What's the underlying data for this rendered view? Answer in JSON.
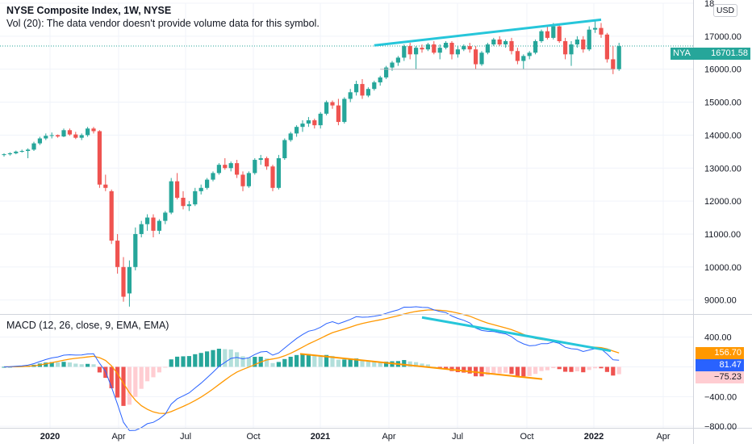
{
  "header": {
    "title": "NYSE Composite Index, 1W, NYSE",
    "volume_note": "Vol (20): The data vendor doesn't provide volume data for this symbol."
  },
  "currency_button": "USD",
  "symbol_tag": {
    "symbol": "NYA",
    "price": "16701.58",
    "color": "#26a69a"
  },
  "macd_header": "MACD (12, 26, close, 9, EMA, EMA)",
  "macd_tags": [
    {
      "label": "156.70",
      "bg": "#ff9800",
      "fg": "#ffffff"
    },
    {
      "label": "81.47",
      "bg": "#2962ff",
      "fg": "#ffffff"
    },
    {
      "label": "−75.23",
      "bg": "#ffcdd2",
      "fg": "#131722"
    }
  ],
  "colors": {
    "up": "#26a69a",
    "down": "#ef5350",
    "hist_up_strong": "#26a69a",
    "hist_up_weak": "#b2dfdb",
    "hist_down_strong": "#ef5350",
    "hist_down_weak": "#ffcdd2",
    "macd_line": "#2962ff",
    "signal_line": "#ff9800",
    "trend_cyan": "#26c6da",
    "trend_orange": "#ff9800"
  },
  "chart_data": [
    {
      "type": "candlestick",
      "title": "NYSE Composite Index, 1W, NYSE",
      "ylim": [
        8600,
        18000
      ],
      "price_ticks": [
        "9000.00",
        "10000.00",
        "11000.00",
        "12000.00",
        "13000.00",
        "14000.00",
        "15000.00",
        "16000.00",
        "17000.00",
        "18"
      ],
      "x_ticks": [
        "2020",
        "Apr",
        "Jul",
        "Oct",
        "2021",
        "Apr",
        "Jul",
        "Oct",
        "2022",
        "Apr"
      ],
      "last_price": 16701.58,
      "candles": [
        [
          13400,
          13450,
          13350,
          13420
        ],
        [
          13420,
          13480,
          13380,
          13450
        ],
        [
          13450,
          13530,
          13420,
          13500
        ],
        [
          13500,
          13560,
          13470,
          13520
        ],
        [
          13520,
          13600,
          13300,
          13560
        ],
        [
          13560,
          13800,
          13520,
          13750
        ],
        [
          13750,
          13950,
          13700,
          13900
        ],
        [
          13900,
          14050,
          13850,
          13980
        ],
        [
          13980,
          14080,
          13900,
          14000
        ],
        [
          14000,
          14020,
          13920,
          13960
        ],
        [
          13960,
          14200,
          13940,
          14150
        ],
        [
          14150,
          14200,
          13980,
          14020
        ],
        [
          14020,
          14100,
          13880,
          13920
        ],
        [
          13920,
          14050,
          13850,
          14000
        ],
        [
          14000,
          14250,
          13950,
          14200
        ],
        [
          14200,
          14250,
          14050,
          14120
        ],
        [
          14120,
          14150,
          12400,
          12500
        ],
        [
          12500,
          12800,
          12300,
          12400
        ],
        [
          12300,
          12350,
          10700,
          10800
        ],
        [
          10800,
          11000,
          9800,
          10000
        ],
        [
          10000,
          10300,
          8950,
          9100
        ],
        [
          9200,
          10200,
          8800,
          10000
        ],
        [
          10000,
          11200,
          9900,
          11000
        ],
        [
          11000,
          11400,
          10900,
          11300
        ],
        [
          11300,
          11600,
          11100,
          11500
        ],
        [
          11500,
          11600,
          10900,
          11100
        ],
        [
          11100,
          11450,
          11000,
          11400
        ],
        [
          11400,
          11700,
          11300,
          11650
        ],
        [
          11650,
          12700,
          11600,
          12600
        ],
        [
          12600,
          12850,
          12050,
          12100
        ],
        [
          12100,
          12300,
          11750,
          11850
        ],
        [
          11850,
          12000,
          11700,
          11900
        ],
        [
          11900,
          12400,
          11850,
          12300
        ],
        [
          12300,
          12500,
          12200,
          12400
        ],
        [
          12400,
          12700,
          12350,
          12650
        ],
        [
          12650,
          12900,
          12600,
          12850
        ],
        [
          12850,
          13150,
          12800,
          13100
        ],
        [
          13100,
          13300,
          12950,
          13000
        ],
        [
          13000,
          13200,
          12900,
          13150
        ],
        [
          13150,
          13250,
          12700,
          12800
        ],
        [
          12800,
          12900,
          12300,
          12450
        ],
        [
          12450,
          12900,
          12400,
          12850
        ],
        [
          12850,
          13300,
          12800,
          13250
        ],
        [
          13250,
          13400,
          13100,
          13300
        ],
        [
          13300,
          13350,
          12950,
          13050
        ],
        [
          13050,
          13100,
          12300,
          12400
        ],
        [
          12400,
          13400,
          12350,
          13300
        ],
        [
          13300,
          13900,
          13250,
          13850
        ],
        [
          13850,
          14100,
          13800,
          14050
        ],
        [
          14050,
          14300,
          13950,
          14250
        ],
        [
          14250,
          14450,
          14100,
          14350
        ],
        [
          14350,
          14550,
          14250,
          14450
        ],
        [
          14450,
          14500,
          14200,
          14300
        ],
        [
          14300,
          14700,
          14200,
          14650
        ],
        [
          14650,
          15050,
          14600,
          15000
        ],
        [
          15000,
          15050,
          14800,
          14900
        ],
        [
          14900,
          15100,
          14300,
          14400
        ],
        [
          14400,
          15150,
          14350,
          15100
        ],
        [
          15100,
          15400,
          15000,
          15300
        ],
        [
          15300,
          15650,
          15200,
          15550
        ],
        [
          15550,
          15700,
          15100,
          15200
        ],
        [
          15200,
          15450,
          15150,
          15400
        ],
        [
          15400,
          15650,
          15350,
          15600
        ],
        [
          15600,
          15800,
          15500,
          15750
        ],
        [
          15750,
          16100,
          15700,
          16050
        ],
        [
          16050,
          16250,
          15950,
          16200
        ],
        [
          16200,
          16400,
          16100,
          16350
        ],
        [
          16350,
          16750,
          16250,
          16700
        ],
        [
          16700,
          16800,
          16300,
          16450
        ],
        [
          16450,
          16700,
          16000,
          16650
        ],
        [
          16650,
          16750,
          16500,
          16600
        ],
        [
          16600,
          16800,
          16550,
          16750
        ],
        [
          16750,
          16850,
          16450,
          16500
        ],
        [
          16500,
          16750,
          16300,
          16650
        ],
        [
          16650,
          16850,
          16600,
          16800
        ],
        [
          16800,
          16850,
          16300,
          16450
        ],
        [
          16450,
          16700,
          16350,
          16600
        ],
        [
          16600,
          16750,
          16550,
          16700
        ],
        [
          16700,
          16800,
          16500,
          16600
        ],
        [
          16600,
          16700,
          16000,
          16150
        ],
        [
          16150,
          16550,
          16100,
          16500
        ],
        [
          16500,
          16800,
          16450,
          16750
        ],
        [
          16750,
          16950,
          16700,
          16900
        ],
        [
          16900,
          17000,
          16700,
          16750
        ],
        [
          16750,
          16900,
          16650,
          16850
        ],
        [
          16850,
          16950,
          16450,
          16550
        ],
        [
          16550,
          16650,
          16150,
          16250
        ],
        [
          16250,
          16450,
          16000,
          16400
        ],
        [
          16400,
          16550,
          16300,
          16500
        ],
        [
          16500,
          16900,
          16450,
          16850
        ],
        [
          16850,
          17200,
          16800,
          17150
        ],
        [
          17150,
          17300,
          16900,
          16950
        ],
        [
          16950,
          17400,
          16900,
          17300
        ],
        [
          17300,
          17350,
          16800,
          16850
        ],
        [
          16850,
          16950,
          16300,
          16450
        ],
        [
          16450,
          16850,
          16100,
          16750
        ],
        [
          16750,
          17000,
          16650,
          16900
        ],
        [
          16900,
          17000,
          16500,
          16600
        ],
        [
          16600,
          17300,
          16550,
          17200
        ],
        [
          17200,
          17450,
          17100,
          17250
        ],
        [
          17250,
          17400,
          16950,
          17050
        ],
        [
          17050,
          17100,
          16200,
          16300
        ],
        [
          16300,
          16700,
          15850,
          16000
        ],
        [
          16000,
          16800,
          15950,
          16700
        ]
      ]
    },
    {
      "type": "line",
      "title": "MACD (12, 26, close, 9, EMA, EMA)",
      "ylim": [
        -820,
        700
      ],
      "y_ticks": [
        "400.00",
        "−400.00",
        "−800.00"
      ],
      "values_last": {
        "signal": 156.7,
        "macd": 81.47,
        "histogram": -75.23
      }
    }
  ]
}
